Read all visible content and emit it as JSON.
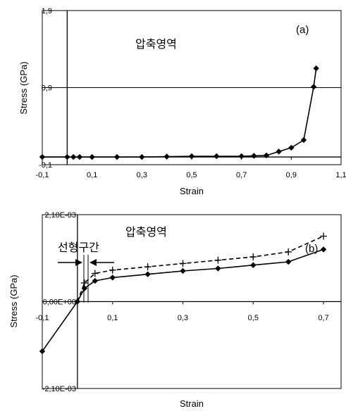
{
  "chart_data": [
    {
      "type": "line",
      "panel_label": "(a)",
      "annotation": "압축영역",
      "xlabel": "Strain",
      "ylabel": "Stress (GPa)",
      "xlim": [
        -0.1,
        1.1
      ],
      "ylim": [
        -0.1,
        1.9
      ],
      "x_ticks": [
        -0.1,
        0.1,
        0.3,
        0.5,
        0.7,
        0.9,
        1.1
      ],
      "x_tick_labels": [
        "-0,1",
        "0,1",
        "0,3",
        "0,5",
        "0,7",
        "0,9",
        "1,1"
      ],
      "y_ticks": [
        -0.1,
        0.9,
        1.9
      ],
      "y_tick_labels": [
        "-0,1",
        "0,9",
        "1,9"
      ],
      "grid": "horizontal",
      "series": [
        {
          "marker": "diamond",
          "line": "solid",
          "x": [
            -0.1,
            0.0,
            0.025,
            0.05,
            0.1,
            0.2,
            0.3,
            0.4,
            0.5,
            0.6,
            0.7,
            0.75,
            0.8,
            0.85,
            0.9,
            0.95,
            0.99,
            1.0
          ],
          "y": [
            0.0,
            0.0,
            0.0,
            0.0,
            0.0,
            0.0,
            0.0,
            0.005,
            0.01,
            0.01,
            0.01,
            0.015,
            0.02,
            0.07,
            0.12,
            0.22,
            0.91,
            1.15
          ]
        }
      ]
    },
    {
      "type": "line",
      "panel_label": "(b)",
      "annotation": "압축영역",
      "linear_region_label": "선형구간",
      "xlabel": "Strain",
      "ylabel": "Stress (GPa)",
      "xlim": [
        -0.1,
        0.75
      ],
      "ylim": [
        -0.0021,
        0.0021
      ],
      "x_ticks": [
        -0.1,
        0.1,
        0.3,
        0.5,
        0.7
      ],
      "x_tick_labels": [
        "-0,1",
        "0,1",
        "0,3",
        "0,5",
        "0,7"
      ],
      "y_ticks": [
        -0.0021,
        0.0,
        0.0021
      ],
      "y_tick_labels": [
        "-2,10E-03",
        "0,00E+00",
        "2,10E-03"
      ],
      "grid": "horizontal",
      "series": [
        {
          "marker": "diamond",
          "line": "solid",
          "x": [
            -0.1,
            0.0,
            0.02,
            0.05,
            0.1,
            0.2,
            0.3,
            0.4,
            0.5,
            0.6,
            0.7
          ],
          "y": [
            -0.0012,
            0.0,
            0.00032,
            0.0005,
            0.00058,
            0.00066,
            0.00074,
            0.0008,
            0.00088,
            0.00096,
            0.00126
          ]
        },
        {
          "marker": "plus",
          "line": "dashed",
          "x": [
            0.0,
            0.02,
            0.05,
            0.1,
            0.2,
            0.3,
            0.4,
            0.5,
            0.6,
            0.7
          ],
          "y": [
            0.0,
            0.00045,
            0.00068,
            0.00076,
            0.00084,
            0.00092,
            0.001,
            0.00108,
            0.0012,
            0.00158
          ]
        }
      ]
    }
  ]
}
